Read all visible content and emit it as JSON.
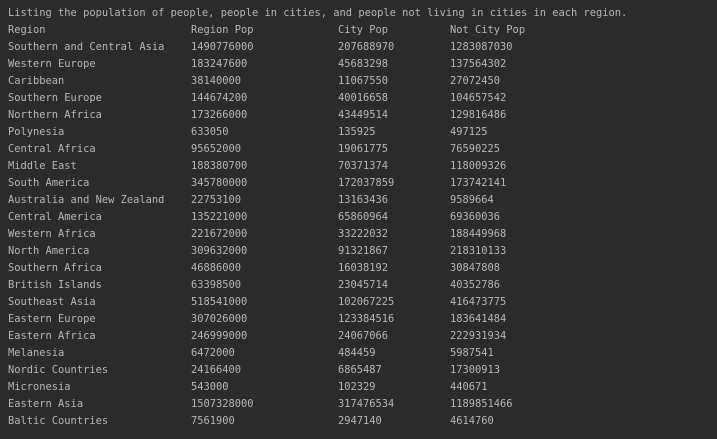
{
  "colors": {
    "background": "#2b2b2b",
    "text": "#b7b7b7"
  },
  "console": {
    "heading": "Listing the population of people, people in cities, and people not living in cities in each region.",
    "headers": [
      "Region",
      "Region Pop",
      "City Pop",
      "Not City Pop"
    ],
    "rows": [
      [
        "Southern and Central Asia",
        "1490776000",
        "207688970",
        "1283087030"
      ],
      [
        "Western Europe",
        "183247600",
        "45683298",
        "137564302"
      ],
      [
        "Caribbean",
        "38140000",
        "11067550",
        "27072450"
      ],
      [
        "Southern Europe",
        "144674200",
        "40016658",
        "104657542"
      ],
      [
        "Northern Africa",
        "173266000",
        "43449514",
        "129816486"
      ],
      [
        "Polynesia",
        "633050",
        "135925",
        "497125"
      ],
      [
        "Central Africa",
        "95652000",
        "19061775",
        "76590225"
      ],
      [
        "Middle East",
        "188380700",
        "70371374",
        "118009326"
      ],
      [
        "South America",
        "345780000",
        "172037859",
        "173742141"
      ],
      [
        "Australia and New Zealand",
        "22753100",
        "13163436",
        "9589664"
      ],
      [
        "Central America",
        "135221000",
        "65860964",
        "69360036"
      ],
      [
        "Western Africa",
        "221672000",
        "33222032",
        "188449968"
      ],
      [
        "North America",
        "309632000",
        "91321867",
        "218310133"
      ],
      [
        "Southern Africa",
        "46886000",
        "16038192",
        "30847808"
      ],
      [
        "British Islands",
        "63398500",
        "23045714",
        "40352786"
      ],
      [
        "Southeast Asia",
        "518541000",
        "102067225",
        "416473775"
      ],
      [
        "Eastern Europe",
        "307026000",
        "123384516",
        "183641484"
      ],
      [
        "Eastern Africa",
        "246999000",
        "24067066",
        "222931934"
      ],
      [
        "Melanesia",
        "6472000",
        "484459",
        "5987541"
      ],
      [
        "Nordic Countries",
        "24166400",
        "6865487",
        "17300913"
      ],
      [
        "Micronesia",
        "543000",
        "102329",
        "440671"
      ],
      [
        "Eastern Asia",
        "1507328000",
        "317476534",
        "1189851466"
      ],
      [
        "Baltic Countries",
        "7561900",
        "2947140",
        "4614760"
      ]
    ]
  }
}
